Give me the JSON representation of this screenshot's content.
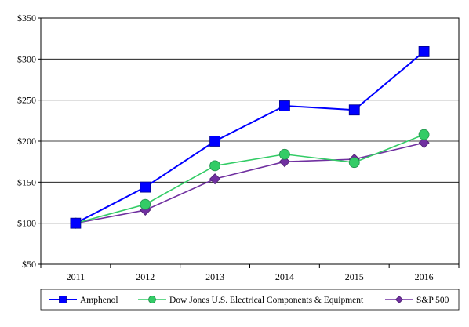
{
  "chart_data": {
    "type": "line",
    "title": "",
    "xlabel": "",
    "ylabel": "",
    "categories": [
      "2011",
      "2012",
      "2013",
      "2014",
      "2015",
      "2016"
    ],
    "ylim": [
      50,
      350
    ],
    "yticks": [
      50,
      100,
      150,
      200,
      250,
      300,
      350
    ],
    "ytick_labels": [
      "$50",
      "$100",
      "$150",
      "$200",
      "$250",
      "$300",
      "$350"
    ],
    "grid": "horizontal",
    "legend_position": "bottom",
    "series": [
      {
        "name": "Amphenol",
        "values": [
          100,
          144,
          200,
          243,
          238,
          309
        ],
        "color": "#0000ff",
        "marker": "square"
      },
      {
        "name": "Dow Jones U.S. Electrical Components & Equipment",
        "values": [
          100,
          123,
          170,
          184,
          174,
          208
        ],
        "color": "#33cc66",
        "marker": "circle"
      },
      {
        "name": "S&P 500",
        "values": [
          100,
          116,
          154,
          175,
          178,
          198
        ],
        "color": "#7030a0",
        "marker": "diamond"
      }
    ]
  }
}
